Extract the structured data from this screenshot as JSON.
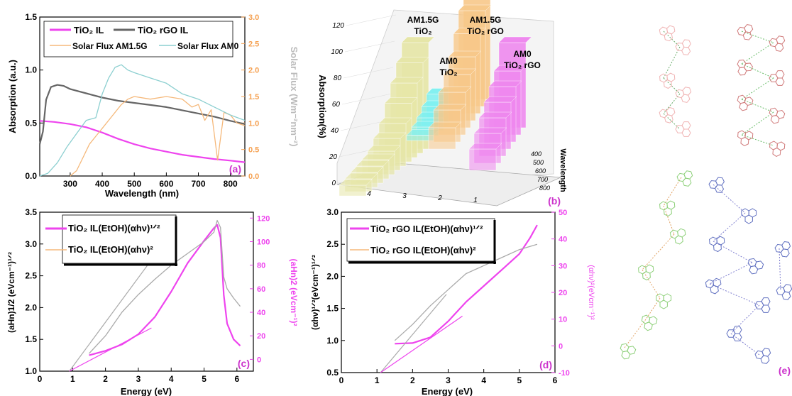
{
  "chart_data": [
    {
      "type": "line",
      "panel_label": "(a)",
      "xlabel": "Wavelength (nm)",
      "ylabel": "Absorption (a.u.)",
      "y2label": "Solar Flux (Wm⁻²nm⁻²)",
      "xlim": [
        205,
        845
      ],
      "ylim": [
        0,
        1.5
      ],
      "y2lim": [
        0,
        3.0
      ],
      "xticks": [
        "300",
        "400",
        "500",
        "600",
        "700",
        "800"
      ],
      "yticks": [
        "0.0",
        "0.5",
        "1.0",
        "1.5"
      ],
      "y2ticks": [
        "0.0",
        "0.5",
        "1.0",
        "1.5",
        "2.0",
        "2.5",
        "3.0"
      ],
      "legend": [
        "TiO₂ IL",
        "TiO₂ rGO IL",
        "Solar Flux AM1.5G",
        "Solar Flux AM0"
      ],
      "series": [
        {
          "name": "TiO₂ IL",
          "color": "#ee44ee",
          "axis": "left",
          "x": [
            205,
            250,
            300,
            350,
            400,
            450,
            500,
            550,
            600,
            650,
            700,
            750,
            800,
            845
          ],
          "y": [
            0.52,
            0.51,
            0.49,
            0.46,
            0.41,
            0.35,
            0.3,
            0.26,
            0.23,
            0.2,
            0.18,
            0.16,
            0.145,
            0.13
          ]
        },
        {
          "name": "TiO₂ rGO IL",
          "color": "#666666",
          "axis": "left",
          "x": [
            205,
            215,
            225,
            240,
            260,
            280,
            300,
            350,
            400,
            450,
            500,
            550,
            600,
            650,
            700,
            750,
            800,
            845
          ],
          "y": [
            0.3,
            0.42,
            0.72,
            0.84,
            0.86,
            0.85,
            0.82,
            0.78,
            0.74,
            0.71,
            0.69,
            0.67,
            0.65,
            0.62,
            0.59,
            0.56,
            0.52,
            0.49
          ]
        },
        {
          "name": "Solar Flux AM1.5G",
          "color": "#f5b87a",
          "axis": "right",
          "x": [
            300,
            320,
            340,
            360,
            380,
            400,
            420,
            440,
            460,
            480,
            500,
            550,
            600,
            650,
            680,
            700,
            720,
            740,
            760,
            780,
            800,
            820,
            845
          ],
          "y": [
            0.0,
            0.1,
            0.35,
            0.6,
            0.75,
            0.9,
            1.05,
            1.2,
            1.35,
            1.45,
            1.5,
            1.45,
            1.5,
            1.45,
            1.3,
            1.35,
            1.05,
            1.25,
            0.3,
            1.2,
            1.15,
            1.0,
            0.95
          ]
        },
        {
          "name": "Solar Flux AM0",
          "color": "#8ccfd0",
          "axis": "right",
          "x": [
            205,
            230,
            260,
            290,
            320,
            350,
            380,
            400,
            420,
            440,
            460,
            480,
            500,
            550,
            600,
            650,
            700,
            750,
            800,
            845
          ],
          "y": [
            0.0,
            0.05,
            0.25,
            0.55,
            0.8,
            1.05,
            1.1,
            1.55,
            1.85,
            2.05,
            2.1,
            2.0,
            1.95,
            1.85,
            1.75,
            1.55,
            1.45,
            1.3,
            1.15,
            1.05
          ]
        }
      ]
    },
    {
      "type": "bar3d",
      "panel_label": "(b)",
      "zlabel": "Absorption(%)",
      "ylabel_3d": "Wavelength",
      "zticks": [
        "0",
        "20",
        "40",
        "60",
        "80",
        "100",
        "120"
      ],
      "yticks": [
        "400",
        "500",
        "600",
        "700",
        "800"
      ],
      "xticks": [
        "4",
        "3",
        "2",
        "1"
      ],
      "series": [
        {
          "name": "AM1.5G TiO₂",
          "label_lines": [
            "AM1.5G",
            "TiO₂"
          ],
          "color": "#e6e6a8",
          "values": [
            10,
            12,
            14,
            16,
            18,
            22,
            30,
            40,
            55,
            70,
            85,
            100
          ]
        },
        {
          "name": "AM0 TiO₂",
          "label_lines": [
            "AM0",
            "TiO₂"
          ],
          "color": "#7ff0f0",
          "values": [
            5,
            8,
            12,
            18,
            25
          ]
        },
        {
          "name": "AM1.5G TiO₂ rGO",
          "label_lines": [
            "AM1.5G",
            "TiO₂ rGO"
          ],
          "color": "#f7c88a",
          "values": [
            20,
            30,
            40,
            50,
            60,
            75,
            90,
            105
          ]
        },
        {
          "name": "AM0 TiO₂ rGO",
          "label_lines": [
            "AM0",
            "TiO₂ rGO"
          ],
          "color": "#ee88ee",
          "values": [
            20,
            28,
            36,
            44,
            52,
            60,
            80
          ]
        }
      ]
    },
    {
      "type": "line",
      "panel_label": "(c)",
      "xlabel": "Energy (eV)",
      "ylabel": "(aHn)1/2 (eVcm⁻¹)¹ᐟ²",
      "y2label": "(aHn)2 (eVcm⁻¹)²",
      "xlim": [
        0,
        6.5
      ],
      "ylim": [
        1.0,
        3.5
      ],
      "y2lim": [
        -10,
        125
      ],
      "xticks": [
        "0",
        "1",
        "2",
        "3",
        "4",
        "5",
        "6"
      ],
      "yticks": [
        "1.0",
        "1.5",
        "2.0",
        "2.5",
        "3.0",
        "3.5"
      ],
      "y2ticks": [
        "0",
        "20",
        "40",
        "60",
        "80",
        "100",
        "120"
      ],
      "legend": [
        "TiO₂ IL(EtOH)(αhν)¹ᐟ²",
        "TiO₂ IL(EtOH)(αhν)²"
      ],
      "series": [
        {
          "name": "TiO₂ IL(EtOH)(αhν)¹ᐟ²",
          "color": "#ee44ee",
          "axis": "left",
          "x": [
            1.5,
            2.0,
            2.5,
            3.0,
            3.5,
            4.0,
            4.5,
            5.0,
            5.3,
            5.4,
            5.5,
            5.6,
            5.7,
            5.9,
            6.1
          ],
          "y": [
            1.25,
            1.32,
            1.42,
            1.58,
            1.85,
            2.25,
            2.7,
            3.05,
            3.25,
            3.3,
            3.1,
            2.2,
            1.75,
            1.5,
            1.4
          ]
        },
        {
          "name": "TiO₂ IL(EtOH)(αhν)²",
          "color": "#aaaaaa",
          "axis": "right",
          "x": [
            1.5,
            2.0,
            2.5,
            3.0,
            3.5,
            4.0,
            4.5,
            5.0,
            5.3,
            5.4,
            5.5,
            5.6,
            5.7,
            5.9,
            6.1
          ],
          "y": [
            5,
            20,
            40,
            55,
            68,
            80,
            90,
            100,
            108,
            118,
            112,
            70,
            60,
            52,
            45
          ]
        },
        {
          "name": "tangent 1",
          "color": "#aaaaaa",
          "axis": "left",
          "x": [
            0.9,
            3.3
          ],
          "y": [
            1.0,
            2.68
          ]
        },
        {
          "name": "tangent 2",
          "color": "#ee44ee",
          "axis": "left",
          "x": [
            0.9,
            3.4
          ],
          "y": [
            1.0,
            1.68
          ]
        }
      ]
    },
    {
      "type": "line",
      "panel_label": "(d)",
      "xlabel": "Energy (eV)",
      "ylabel": "(αhν)¹ᐟ²(eVcm⁻¹)¹ᐟ²",
      "y2label": "(αhν)²(eVcm⁻¹)²",
      "xlim": [
        0,
        6
      ],
      "ylim": [
        0.5,
        3.0
      ],
      "y2lim": [
        -10,
        50
      ],
      "xticks": [
        "0",
        "1",
        "2",
        "3",
        "4",
        "5",
        "6"
      ],
      "yticks": [
        "0.5",
        "1.0",
        "1.5",
        "2.0",
        "2.5",
        "3.0"
      ],
      "y2ticks": [
        "-10",
        "0",
        "10",
        "20",
        "30",
        "40",
        "50"
      ],
      "legend": [
        "TiO₂ rGO IL(EtOH)(αhν)¹ᐟ²",
        "TiO₂ rGO IL(EtOH)(αhν)²"
      ],
      "series": [
        {
          "name": "TiO₂ rGO IL(EtOH)(αhν)¹ᐟ²",
          "color": "#ee44ee",
          "axis": "left",
          "x": [
            1.5,
            2.0,
            2.5,
            3.0,
            3.5,
            4.0,
            4.5,
            5.0,
            5.3,
            5.5
          ],
          "y": [
            0.95,
            0.96,
            1.05,
            1.3,
            1.6,
            1.85,
            2.1,
            2.35,
            2.6,
            2.8
          ]
        },
        {
          "name": "TiO₂ rGO IL(EtOH)(αhν)²",
          "color": "#aaaaaa",
          "axis": "right",
          "x": [
            1.5,
            2.0,
            2.5,
            3.0,
            3.5,
            4.0,
            4.5,
            5.0,
            5.5
          ],
          "y": [
            2,
            8,
            15,
            21,
            27,
            30,
            33,
            36,
            38
          ]
        },
        {
          "name": "tangent 1",
          "color": "#aaaaaa",
          "axis": "left",
          "x": [
            1.1,
            2.95
          ],
          "y": [
            0.5,
            1.72
          ]
        },
        {
          "name": "tangent 2",
          "color": "#ee44ee",
          "axis": "left",
          "x": [
            1.1,
            3.4
          ],
          "y": [
            0.5,
            1.38
          ]
        }
      ]
    }
  ],
  "panel_e": {
    "label": "(e)"
  }
}
